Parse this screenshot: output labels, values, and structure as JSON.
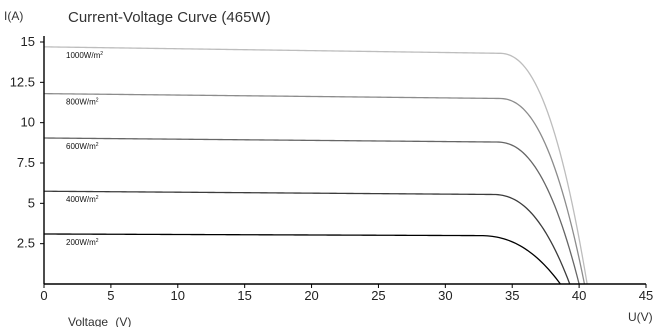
{
  "chart_data": {
    "type": "line",
    "title": "Current-Voltage  Curve (465W)",
    "ylabel": "I(A)",
    "xlabel_right": "U(V)",
    "xlabel_bottom": "Voltage",
    "xlabel_bottom_unit": "(V)",
    "xlim": [
      0,
      45
    ],
    "ylim": [
      0,
      15
    ],
    "x_ticks": [
      "0",
      "5",
      "10",
      "15",
      "20",
      "25",
      "30",
      "35",
      "40",
      "45"
    ],
    "y_ticks": [
      "2.5",
      "5",
      "7.5",
      "10",
      "12.5",
      "15"
    ],
    "grid": false,
    "series": [
      {
        "name": "1000W/m",
        "sup": "2",
        "color": "#bdbdbd",
        "isc": 14.7,
        "imp": 14.3,
        "knee": 34.0,
        "voc": 40.6
      },
      {
        "name": "800W/m",
        "sup": "2",
        "color": "#8c8c8c",
        "isc": 11.8,
        "imp": 11.5,
        "knee": 34.0,
        "voc": 40.4
      },
      {
        "name": "600W/m",
        "sup": "2",
        "color": "#666666",
        "isc": 9.05,
        "imp": 8.8,
        "knee": 33.8,
        "voc": 40.0
      },
      {
        "name": "400W/m",
        "sup": "2",
        "color": "#3c3c3c",
        "isc": 5.75,
        "imp": 5.55,
        "knee": 33.5,
        "voc": 39.3
      },
      {
        "name": "200W/m",
        "sup": "2",
        "color": "#000000",
        "isc": 3.1,
        "imp": 3.0,
        "knee": 32.5,
        "voc": 38.6
      }
    ]
  }
}
